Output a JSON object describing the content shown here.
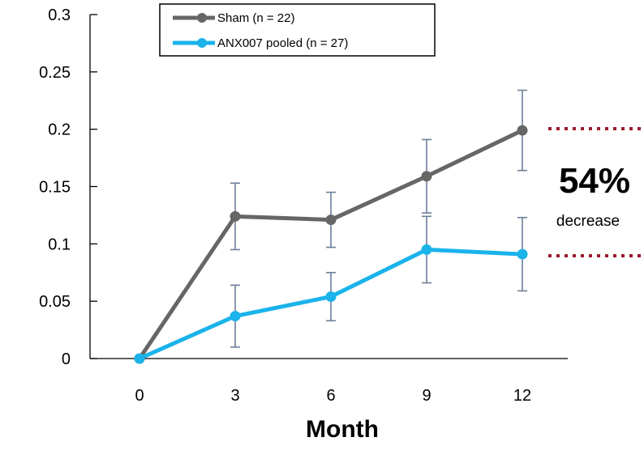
{
  "chart_data": {
    "type": "line",
    "x": [
      0,
      3,
      6,
      9,
      12
    ],
    "xlabel": "Month",
    "ylabel": "",
    "ylim": [
      0,
      0.3
    ],
    "yticks": [
      "0",
      "0.05",
      "0.1",
      "0.15",
      "0.2",
      "0.25",
      "0.3"
    ],
    "xticks": [
      "0",
      "3",
      "6",
      "9",
      "12"
    ],
    "grid": false,
    "legend_position": "top",
    "series": [
      {
        "name": "Sham (n = 22)",
        "color": "#666666",
        "values": [
          0,
          0.124,
          0.121,
          0.159,
          0.199
        ],
        "error": [
          0,
          0.029,
          0.024,
          0.032,
          0.035
        ]
      },
      {
        "name": "ANX007 pooled (n = 27)",
        "color": "#1ab3ea",
        "values": [
          0,
          0.037,
          0.054,
          0.095,
          0.091
        ],
        "error": [
          0,
          0.027,
          0.021,
          0.029,
          0.032
        ]
      }
    ],
    "annotation": {
      "value": "54%",
      "label": "decrease",
      "line_color": "#9b1b30"
    },
    "error_bar_color": "#6b7f99"
  }
}
